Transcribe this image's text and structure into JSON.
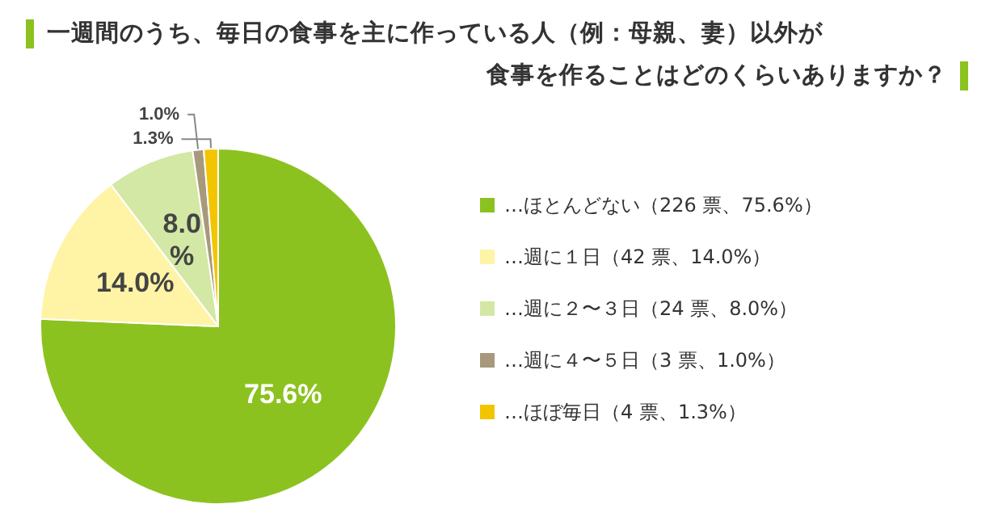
{
  "chart_data": {
    "type": "pie",
    "title": "一週間のうち、毎日の食事を主に作っている人（例：母親、妻）以外が",
    "subtitle": "食事を作ることはどのくらいありますか？",
    "categories": [
      "…ほとんどない（226 票、75.6%）",
      "…週に１日（42 票、14.0%）",
      "…週に２〜３日（24 票、8.0%）",
      "…週に４〜５日（3 票、1.0%）",
      "…ほぼ毎日（4 票、1.3%）"
    ],
    "values": [
      75.6,
      14.0,
      8.0,
      1.0,
      1.3
    ],
    "colors": [
      "#8cc21f",
      "#fff3a6",
      "#d3e8a4",
      "#a8997c",
      "#f2c500"
    ],
    "value_labels": [
      "75.6%",
      "14.0%",
      "8.0\n%",
      "1.0%",
      "1.3%"
    ],
    "legend": "right"
  }
}
